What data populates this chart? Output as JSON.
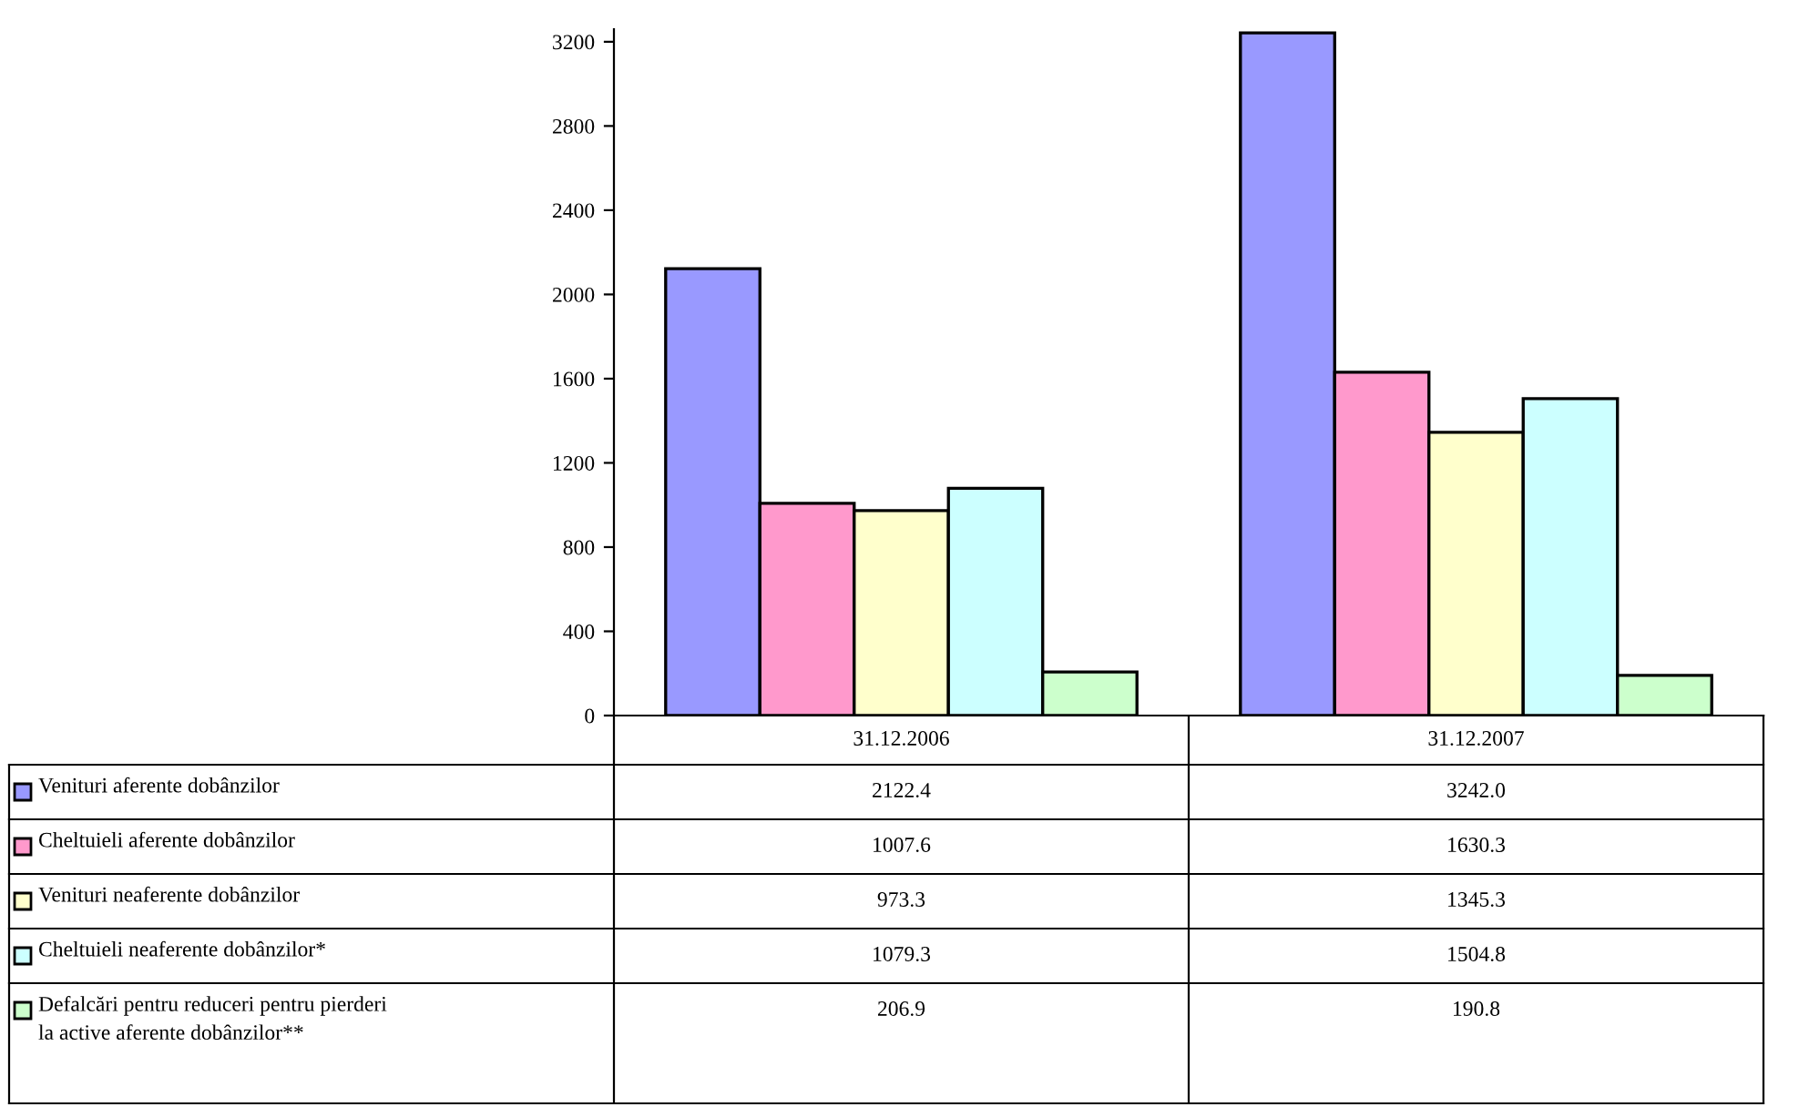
{
  "chart_data": {
    "type": "bar",
    "categories": [
      "31.12.2006",
      "31.12.2007"
    ],
    "series": [
      {
        "name": "Venituri aferente dobânzilor",
        "color": "#9999ff",
        "values": [
          2122.4,
          3242.0
        ],
        "value_labels": [
          "2122.4",
          "3242.0"
        ]
      },
      {
        "name": "Cheltuieli aferente dobânzilor",
        "color": "#ff99cc",
        "values": [
          1007.6,
          1630.3
        ],
        "value_labels": [
          "1007.6",
          "1630.3"
        ]
      },
      {
        "name": "Venituri neaferente dobânzilor",
        "color": "#ffffcc",
        "values": [
          973.3,
          1345.3
        ],
        "value_labels": [
          "973.3",
          "1345.3"
        ]
      },
      {
        "name": "Cheltuieli neaferente dobânzilor*",
        "color": "#ccffff",
        "values": [
          1079.3,
          1504.8
        ],
        "value_labels": [
          "1079.3",
          "1504.8"
        ]
      },
      {
        "name": "Defalcări pentru reduceri pentru pierderi\nla active aferente dobânzilor**",
        "color": "#ccffcc",
        "values": [
          206.9,
          190.8
        ],
        "value_labels": [
          "206.9",
          "190.8"
        ]
      }
    ],
    "ylim": [
      0,
      3260
    ],
    "yticks": [
      0,
      400,
      800,
      1200,
      1600,
      2000,
      2400,
      2800,
      3200
    ],
    "grid": false,
    "legend": "bottom left"
  }
}
